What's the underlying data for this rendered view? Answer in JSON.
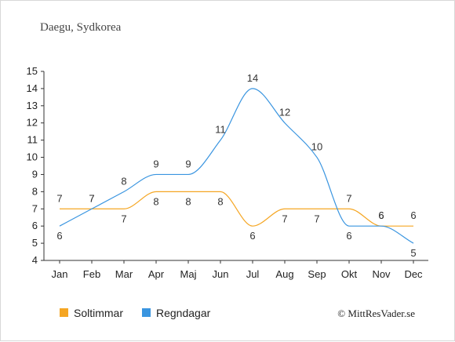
{
  "chart_data": {
    "type": "line",
    "title": "Daegu, Sydkorea",
    "categories": [
      "Jan",
      "Feb",
      "Mar",
      "Apr",
      "Maj",
      "Jun",
      "Jul",
      "Aug",
      "Sep",
      "Okt",
      "Nov",
      "Dec"
    ],
    "series": [
      {
        "name": "Soltimmar",
        "values": [
          7,
          7,
          7,
          8,
          8,
          8,
          6,
          7,
          7,
          7,
          6,
          6
        ],
        "color": "#f5a623"
      },
      {
        "name": "Regndagar",
        "values": [
          6,
          7,
          8,
          9,
          9,
          11,
          14,
          12,
          10,
          6,
          6,
          5
        ],
        "color": "#3a95e0"
      }
    ],
    "ylim": [
      4,
      15
    ],
    "yticks": [
      4,
      5,
      6,
      7,
      8,
      9,
      10,
      11,
      12,
      13,
      14,
      15
    ],
    "xlabel": "",
    "ylabel": "",
    "grid": false,
    "legend_position": "bottom-left"
  },
  "credit": "© MittResVader.se"
}
